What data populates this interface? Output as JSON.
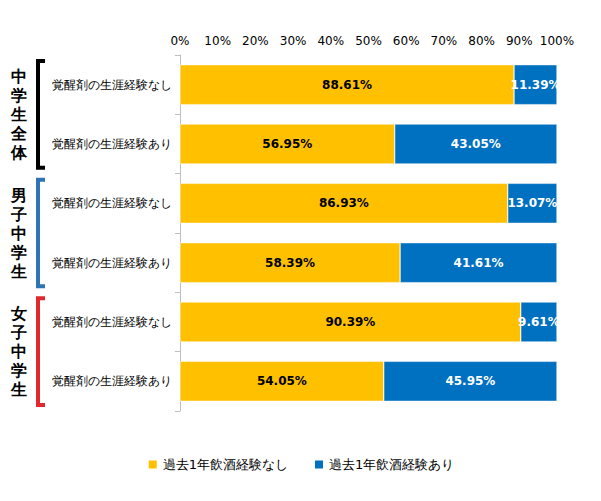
{
  "chart_data": {
    "type": "bar",
    "orientation": "horizontal",
    "stacked": true,
    "data_labels": true,
    "grid": false,
    "legend": "bottom",
    "categories": [
      "覚醒剤の生涯経験なし",
      "覚醒剤の生涯経験あり",
      "覚醒剤の生涯経験なし",
      "覚醒剤の生涯経験あり",
      "覚醒剤の生涯経験なし",
      "覚醒剤の生涯経験あり"
    ],
    "groups": [
      {
        "name": "中学生全体",
        "count": 2,
        "color": "#000000"
      },
      {
        "name": "男子中学生",
        "count": 2,
        "color": "#2e75b6"
      },
      {
        "name": "女子中学生",
        "count": 2,
        "color": "#e0282d"
      }
    ],
    "series": [
      {
        "name": "過去1年飲酒経験なし",
        "color": "#ffc000",
        "values": [
          88.61,
          56.95,
          86.93,
          58.39,
          90.39,
          54.05
        ],
        "value_labels": [
          "88.61%",
          "56.95%",
          "86.93%",
          "58.39%",
          "90.39%",
          "54.05%"
        ]
      },
      {
        "name": "過去1年飲酒経験あり",
        "color": "#0070c0",
        "values": [
          11.39,
          43.05,
          13.07,
          41.61,
          9.61,
          45.95
        ],
        "value_labels": [
          "11.39%",
          "43.05%",
          "13.07%",
          "41.61%",
          "9.61%",
          "45.95%"
        ]
      }
    ],
    "xlim": [
      0,
      100
    ],
    "xticks": [
      {
        "value": 0,
        "label": "0%"
      },
      {
        "value": 10,
        "label": "10%"
      },
      {
        "value": 20,
        "label": "20%"
      },
      {
        "value": 30,
        "label": "30%"
      },
      {
        "value": 40,
        "label": "40%"
      },
      {
        "value": 50,
        "label": "50%"
      },
      {
        "value": 60,
        "label": "60%"
      },
      {
        "value": 70,
        "label": "70%"
      },
      {
        "value": 80,
        "label": "80%"
      },
      {
        "value": 90,
        "label": "90%"
      },
      {
        "value": 100,
        "label": "100%"
      }
    ]
  }
}
